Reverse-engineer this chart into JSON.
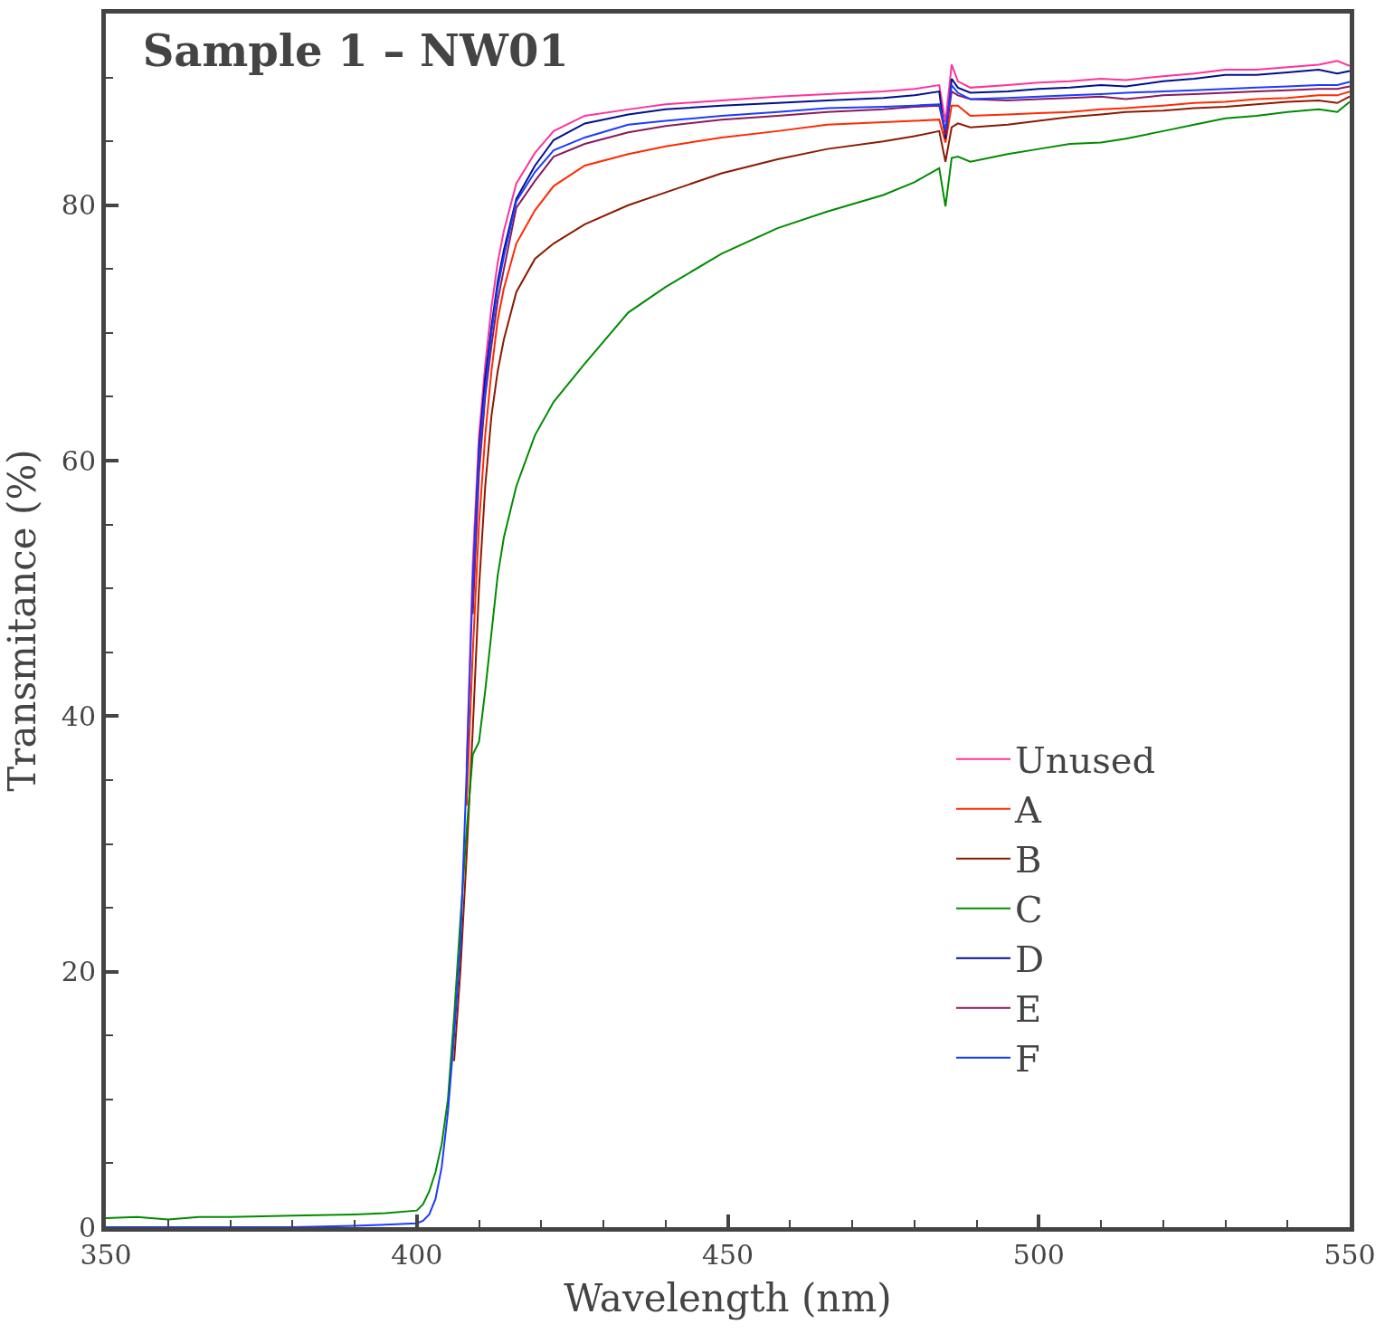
{
  "chart_data": {
    "type": "line",
    "title": "Sample 1 – NW01",
    "xlabel": "Wavelength (nm)",
    "ylabel": "Transmitance (%)",
    "x": [
      350,
      355,
      360,
      365,
      370,
      380,
      390,
      395,
      400,
      401,
      402,
      403,
      404,
      405,
      406,
      407,
      408,
      409,
      410,
      411,
      412,
      413,
      414,
      416,
      419,
      422,
      427,
      434,
      440,
      449,
      458,
      466,
      475,
      480,
      484,
      485,
      486,
      487,
      489,
      495,
      500,
      505,
      510,
      514,
      520,
      525,
      530,
      535,
      540,
      545,
      548,
      550
    ],
    "xlim": [
      350,
      550
    ],
    "ylim": [
      0,
      95
    ],
    "xticks": [
      350,
      {
        "value": 360,
        "label": null
      },
      {
        "value": 370,
        "label": null
      },
      {
        "value": 380,
        "label": null
      },
      {
        "value": 390,
        "label": null
      },
      400,
      {
        "value": 410,
        "label": null
      },
      {
        "value": 420,
        "label": null
      },
      {
        "value": 430,
        "label": null
      },
      {
        "value": 440,
        "label": null
      },
      450,
      {
        "value": 460,
        "label": null
      },
      {
        "value": 470,
        "label": null
      },
      {
        "value": 480,
        "label": null
      },
      {
        "value": 490,
        "label": null
      },
      500,
      {
        "value": 510,
        "label": null
      },
      {
        "value": 520,
        "label": null
      },
      {
        "value": 530,
        "label": null
      },
      {
        "value": 540,
        "label": null
      },
      550
    ],
    "yticks": [
      0,
      {
        "value": 5,
        "label": null
      },
      {
        "value": 10,
        "label": null
      },
      {
        "value": 15,
        "label": null
      },
      20,
      {
        "value": 25,
        "label": null
      },
      {
        "value": 30,
        "label": null
      },
      {
        "value": 35,
        "label": null
      },
      40,
      {
        "value": 45,
        "label": null
      },
      {
        "value": 50,
        "label": null
      },
      {
        "value": 55,
        "label": null
      },
      60,
      {
        "value": 65,
        "label": null
      },
      {
        "value": 70,
        "label": null
      },
      {
        "value": 75,
        "label": null
      },
      80,
      {
        "value": 85,
        "label": null
      },
      {
        "value": 90,
        "label": null
      }
    ],
    "grid": false,
    "legend": "right",
    "marker": "none",
    "line_style": "solid",
    "series": [
      {
        "name": "Unused",
        "color": "#ff3399",
        "values": [
          null,
          null,
          null,
          null,
          null,
          null,
          null,
          null,
          null,
          null,
          null,
          null,
          null,
          null,
          null,
          null,
          36,
          52,
          62,
          67.5,
          72,
          75.5,
          78,
          81.7,
          84.1,
          85.8,
          87.0,
          87.5,
          87.9,
          88.2,
          88.5,
          88.7,
          88.9,
          89.1,
          89.4,
          86.5,
          91.0,
          89.7,
          89.2,
          89.4,
          89.6,
          89.7,
          89.9,
          89.8,
          90.1,
          90.3,
          90.6,
          90.6,
          90.8,
          91.0,
          91.3,
          90.9
        ]
      },
      {
        "name": "A",
        "color": "#ff2a00",
        "values": [
          null,
          null,
          null,
          null,
          null,
          null,
          null,
          null,
          null,
          null,
          null,
          null,
          null,
          null,
          null,
          null,
          33,
          45,
          55,
          62,
          67,
          71,
          73.5,
          77,
          79.6,
          81.5,
          83.1,
          84.0,
          84.6,
          85.3,
          85.8,
          86.3,
          86.5,
          86.6,
          86.7,
          84.9,
          87.8,
          87.8,
          87.0,
          87.1,
          87.2,
          87.3,
          87.5,
          87.6,
          87.8,
          88.0,
          88.1,
          88.3,
          88.4,
          88.6,
          88.6,
          88.9
        ]
      },
      {
        "name": "B",
        "color": "#8b1a00",
        "values": [
          null,
          null,
          null,
          null,
          null,
          null,
          null,
          null,
          null,
          null,
          null,
          null,
          null,
          null,
          13,
          20,
          29,
          39,
          50,
          58,
          63.5,
          67,
          69.5,
          73.2,
          75.8,
          77.0,
          78.5,
          80.0,
          81.0,
          82.5,
          83.6,
          84.4,
          85.0,
          85.4,
          85.8,
          83.4,
          86.1,
          86.4,
          86.1,
          86.3,
          86.6,
          86.9,
          87.1,
          87.3,
          87.4,
          87.6,
          87.7,
          87.9,
          88.1,
          88.2,
          88.0,
          88.5
        ]
      },
      {
        "name": "C",
        "color": "#008c00",
        "values": [
          0.7,
          0.8,
          0.6,
          0.8,
          0.8,
          0.9,
          1.0,
          1.1,
          1.3,
          1.8,
          2.8,
          4.3,
          6.5,
          10,
          16.5,
          24,
          31,
          37,
          38,
          42,
          46.5,
          51,
          54,
          58,
          62,
          64.6,
          67.6,
          71.6,
          73.6,
          76.2,
          78.2,
          79.5,
          80.8,
          81.8,
          82.9,
          79.9,
          83.7,
          83.8,
          83.4,
          84.0,
          84.4,
          84.8,
          84.9,
          85.2,
          85.8,
          86.3,
          86.8,
          87.0,
          87.3,
          87.5,
          87.3,
          88.1
        ]
      },
      {
        "name": "D",
        "color": "#00108c",
        "values": [
          null,
          null,
          null,
          null,
          null,
          null,
          null,
          null,
          null,
          null,
          null,
          null,
          null,
          null,
          null,
          null,
          null,
          50,
          61,
          66.5,
          70.5,
          74,
          76.5,
          80.5,
          83.1,
          85.1,
          86.4,
          87.1,
          87.5,
          87.8,
          88.0,
          88.2,
          88.4,
          88.6,
          88.9,
          85.2,
          89.9,
          89.2,
          88.8,
          88.9,
          89.1,
          89.2,
          89.4,
          89.3,
          89.7,
          89.9,
          90.2,
          90.2,
          90.4,
          90.6,
          90.3,
          90.5
        ]
      },
      {
        "name": "E",
        "color": "#8b1a5a",
        "values": [
          null,
          null,
          null,
          null,
          null,
          null,
          null,
          null,
          null,
          null,
          null,
          null,
          null,
          null,
          null,
          null,
          null,
          48,
          59,
          65,
          69,
          72.5,
          75,
          79.8,
          81.9,
          83.8,
          84.8,
          85.7,
          86.2,
          86.7,
          87.0,
          87.3,
          87.5,
          87.7,
          87.8,
          85.5,
          88.9,
          88.6,
          88.3,
          88.2,
          88.3,
          88.4,
          88.5,
          88.3,
          88.6,
          88.7,
          88.8,
          88.9,
          89.0,
          89.1,
          89.1,
          89.3
        ]
      },
      {
        "name": "F",
        "color": "#1a3cff",
        "values": [
          0,
          0,
          0,
          0,
          0,
          0,
          0.1,
          0.2,
          0.3,
          0.5,
          1.0,
          2.2,
          4.7,
          9.0,
          15,
          22,
          35.5,
          50.5,
          60.5,
          65.5,
          70,
          73.5,
          76,
          80.3,
          82.6,
          84.3,
          85.3,
          86.3,
          86.6,
          87.0,
          87.3,
          87.6,
          87.7,
          87.8,
          87.9,
          85.9,
          89.4,
          88.8,
          88.3,
          88.4,
          88.5,
          88.6,
          88.7,
          88.8,
          88.9,
          89.0,
          89.1,
          89.2,
          89.3,
          89.4,
          89.4,
          89.65
        ]
      }
    ]
  }
}
